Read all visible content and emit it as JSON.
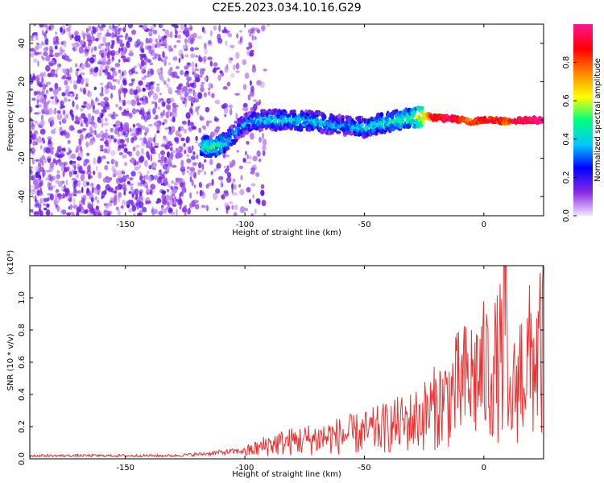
{
  "figure": {
    "title": "C2E5.2023.034.10.16.G29"
  },
  "chart_data": [
    {
      "type": "heatmap",
      "xlabel": "Height of straight line (km)",
      "ylabel": "Frequency (Hz)",
      "xlim": [
        -190,
        25
      ],
      "ylim": [
        -50,
        50
      ],
      "x_ticks": [
        -150,
        -100,
        -50,
        0
      ],
      "y_ticks": [
        -40,
        -20,
        0,
        20,
        40
      ],
      "colorbar": {
        "label": "Normalized spectral amplitude",
        "range": [
          0.0,
          1.0
        ],
        "ticks": [
          "0.0",
          "0.2",
          "0.4",
          "0.6",
          "0.8"
        ],
        "colors": [
          "#f2e6ff",
          "#8a2be2",
          "#0000ff",
          "#00c8ff",
          "#00ff80",
          "#ffff00",
          "#ff8000",
          "#ff0000",
          "#ff1493"
        ]
      },
      "ridge": {
        "x": [
          -118,
          -113,
          -108,
          -103,
          -98,
          -90,
          -80,
          -70,
          -60,
          -50,
          -40,
          -30,
          -25,
          -20,
          -15,
          -10,
          -5,
          0,
          5,
          10,
          15,
          20,
          25
        ],
        "freq": [
          -14,
          -14,
          -12,
          -5,
          -1,
          0,
          0,
          -1,
          -3,
          -4,
          -1,
          1,
          2,
          1,
          1,
          0,
          -1,
          0,
          0,
          -1,
          0,
          0,
          0
        ],
        "amplitude": [
          0.45,
          0.5,
          0.45,
          0.35,
          0.35,
          0.4,
          0.4,
          0.4,
          0.35,
          0.4,
          0.45,
          0.5,
          0.7,
          0.9,
          1.0,
          0.9,
          0.8,
          0.95,
          0.9,
          0.8,
          1.0,
          1.0,
          1.0
        ]
      }
    },
    {
      "type": "line",
      "xlabel": "Height of straight line (km)",
      "ylabel": "SNR (10 * v/v)",
      "scale_note": "(x10⁴)",
      "xlim": [
        -190,
        25
      ],
      "ylim": [
        0,
        1.2
      ],
      "x_ticks": [
        -150,
        -100,
        -50,
        0
      ],
      "y_ticks": [
        "0.0",
        "0.2",
        "0.4",
        "0.6",
        "0.8",
        "1.0"
      ],
      "series": [
        {
          "color": "#f03030",
          "x": [
            -190,
            -170,
            -150,
            -130,
            -118,
            -110,
            -100,
            -95,
            -90,
            -80,
            -70,
            -60,
            -50,
            -40,
            -30,
            -25,
            -20,
            -15,
            -10,
            -5,
            0,
            5,
            8,
            9,
            10,
            15,
            20,
            25
          ],
          "y": [
            0.02,
            0.02,
            0.02,
            0.02,
            0.03,
            0.04,
            0.05,
            0.07,
            0.1,
            0.12,
            0.14,
            0.16,
            0.18,
            0.22,
            0.26,
            0.3,
            0.36,
            0.42,
            0.5,
            0.55,
            0.6,
            0.62,
            0.7,
            1.2,
            0.3,
            0.6,
            0.68,
            0.75
          ]
        }
      ]
    }
  ]
}
